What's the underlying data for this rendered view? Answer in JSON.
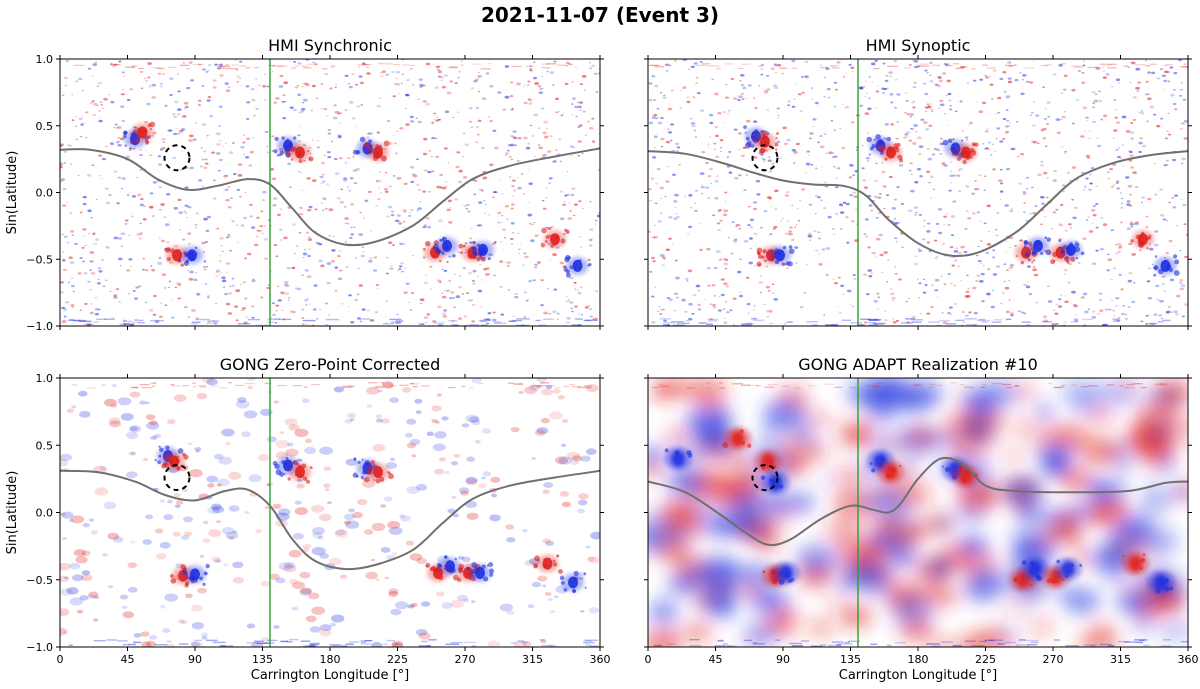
{
  "figure_title": "2021-11-07 (Event 3)",
  "colors": {
    "positive": "#e0201c",
    "negative": "#1c2fe0",
    "neutral_line": "#707070",
    "marker_line": "#2ca02c",
    "circle": "#000000"
  },
  "chart_data": [
    {
      "id": "hmi-synchronic",
      "type": "heatmap",
      "title": "HMI Synchronic",
      "xlabel": "",
      "ylabel": "Sin(Latitude)",
      "xlim": [
        0,
        360
      ],
      "ylim": [
        -1,
        1
      ],
      "xticks": [
        0,
        45,
        90,
        135,
        180,
        225,
        270,
        315,
        360
      ],
      "yticks": [
        -1.0,
        -0.5,
        0.0,
        0.5,
        1.0
      ],
      "ytick_labels": [
        "−1.0",
        "−0.5",
        "0.0",
        "0.5",
        "1.0"
      ],
      "show_xtick_labels": false,
      "show_ytick_labels": true,
      "vertical_line_lon": 140,
      "circle": {
        "lon": 78,
        "lat": 0.26
      },
      "neutral_line": [
        [
          0,
          0.32
        ],
        [
          20,
          0.32
        ],
        [
          45,
          0.25
        ],
        [
          65,
          0.1
        ],
        [
          85,
          0.02
        ],
        [
          105,
          0.05
        ],
        [
          125,
          0.1
        ],
        [
          140,
          0.06
        ],
        [
          155,
          -0.12
        ],
        [
          170,
          -0.3
        ],
        [
          190,
          -0.39
        ],
        [
          210,
          -0.37
        ],
        [
          235,
          -0.25
        ],
        [
          255,
          -0.07
        ],
        [
          275,
          0.1
        ],
        [
          300,
          0.2
        ],
        [
          330,
          0.27
        ],
        [
          360,
          0.33
        ]
      ],
      "flux_regions": [
        {
          "lon": 78,
          "lat": -0.47,
          "pol": "pos"
        },
        {
          "lon": 88,
          "lat": -0.47,
          "pol": "neg"
        },
        {
          "lon": 152,
          "lat": 0.35,
          "pol": "neg"
        },
        {
          "lon": 160,
          "lat": 0.3,
          "pol": "pos"
        },
        {
          "lon": 205,
          "lat": 0.33,
          "pol": "neg"
        },
        {
          "lon": 212,
          "lat": 0.3,
          "pol": "pos"
        },
        {
          "lon": 250,
          "lat": -0.45,
          "pol": "pos"
        },
        {
          "lon": 258,
          "lat": -0.4,
          "pol": "neg"
        },
        {
          "lon": 275,
          "lat": -0.45,
          "pol": "pos"
        },
        {
          "lon": 282,
          "lat": -0.43,
          "pol": "neg"
        },
        {
          "lon": 330,
          "lat": -0.35,
          "pol": "pos"
        },
        {
          "lon": 345,
          "lat": -0.55,
          "pol": "neg"
        },
        {
          "lon": 50,
          "lat": 0.4,
          "pol": "neg"
        },
        {
          "lon": 55,
          "lat": 0.45,
          "pol": "pos"
        }
      ]
    },
    {
      "id": "hmi-synoptic",
      "type": "heatmap",
      "title": "HMI Synoptic",
      "xlabel": "",
      "ylabel": "",
      "xlim": [
        0,
        360
      ],
      "ylim": [
        -1,
        1
      ],
      "xticks": [
        0,
        45,
        90,
        135,
        180,
        225,
        270,
        315,
        360
      ],
      "yticks": [
        -1.0,
        -0.5,
        0.0,
        0.5,
        1.0
      ],
      "ytick_labels": [
        "−1.0",
        "−0.5",
        "0.0",
        "0.5",
        "1.0"
      ],
      "show_xtick_labels": false,
      "show_ytick_labels": false,
      "vertical_line_lon": 140,
      "circle": {
        "lon": 78,
        "lat": 0.26
      },
      "neutral_line": [
        [
          0,
          0.31
        ],
        [
          25,
          0.29
        ],
        [
          50,
          0.22
        ],
        [
          70,
          0.15
        ],
        [
          90,
          0.09
        ],
        [
          110,
          0.06
        ],
        [
          130,
          0.05
        ],
        [
          145,
          -0.02
        ],
        [
          160,
          -0.2
        ],
        [
          180,
          -0.38
        ],
        [
          200,
          -0.47
        ],
        [
          220,
          -0.45
        ],
        [
          245,
          -0.3
        ],
        [
          265,
          -0.1
        ],
        [
          285,
          0.1
        ],
        [
          310,
          0.22
        ],
        [
          335,
          0.28
        ],
        [
          360,
          0.31
        ]
      ],
      "flux_regions": [
        {
          "lon": 72,
          "lat": 0.42,
          "pol": "neg"
        },
        {
          "lon": 78,
          "lat": 0.38,
          "pol": "pos"
        },
        {
          "lon": 82,
          "lat": -0.47,
          "pol": "pos"
        },
        {
          "lon": 88,
          "lat": -0.47,
          "pol": "neg"
        },
        {
          "lon": 155,
          "lat": 0.35,
          "pol": "neg"
        },
        {
          "lon": 162,
          "lat": 0.3,
          "pol": "pos"
        },
        {
          "lon": 205,
          "lat": 0.33,
          "pol": "neg"
        },
        {
          "lon": 212,
          "lat": 0.3,
          "pol": "pos"
        },
        {
          "lon": 252,
          "lat": -0.45,
          "pol": "pos"
        },
        {
          "lon": 260,
          "lat": -0.4,
          "pol": "neg"
        },
        {
          "lon": 275,
          "lat": -0.45,
          "pol": "pos"
        },
        {
          "lon": 282,
          "lat": -0.43,
          "pol": "neg"
        },
        {
          "lon": 330,
          "lat": -0.35,
          "pol": "pos"
        },
        {
          "lon": 345,
          "lat": -0.55,
          "pol": "neg"
        }
      ]
    },
    {
      "id": "gong-zero-point",
      "type": "heatmap",
      "title": "GONG Zero-Point Corrected",
      "xlabel": "Carrington Longitude [°]",
      "ylabel": "Sin(Latitude)",
      "xlim": [
        0,
        360
      ],
      "ylim": [
        -1,
        1
      ],
      "xticks": [
        0,
        45,
        90,
        135,
        180,
        225,
        270,
        315,
        360
      ],
      "yticks": [
        -1.0,
        -0.5,
        0.0,
        0.5,
        1.0
      ],
      "ytick_labels": [
        "−1.0",
        "−0.5",
        "0.0",
        "0.5",
        "1.0"
      ],
      "show_xtick_labels": true,
      "show_ytick_labels": true,
      "vertical_line_lon": 140,
      "circle": {
        "lon": 78,
        "lat": 0.26
      },
      "neutral_line": [
        [
          0,
          0.31
        ],
        [
          25,
          0.3
        ],
        [
          50,
          0.23
        ],
        [
          70,
          0.13
        ],
        [
          90,
          0.09
        ],
        [
          110,
          0.16
        ],
        [
          125,
          0.17
        ],
        [
          140,
          0.05
        ],
        [
          155,
          -0.2
        ],
        [
          170,
          -0.36
        ],
        [
          190,
          -0.42
        ],
        [
          210,
          -0.39
        ],
        [
          235,
          -0.28
        ],
        [
          255,
          -0.08
        ],
        [
          275,
          0.1
        ],
        [
          300,
          0.2
        ],
        [
          330,
          0.26
        ],
        [
          360,
          0.31
        ]
      ],
      "flux_regions": [
        {
          "lon": 72,
          "lat": 0.42,
          "pol": "neg"
        },
        {
          "lon": 76,
          "lat": 0.38,
          "pol": "pos"
        },
        {
          "lon": 82,
          "lat": -0.47,
          "pol": "pos"
        },
        {
          "lon": 90,
          "lat": -0.46,
          "pol": "neg"
        },
        {
          "lon": 152,
          "lat": 0.35,
          "pol": "neg"
        },
        {
          "lon": 160,
          "lat": 0.3,
          "pol": "pos"
        },
        {
          "lon": 205,
          "lat": 0.33,
          "pol": "neg"
        },
        {
          "lon": 212,
          "lat": 0.3,
          "pol": "pos"
        },
        {
          "lon": 252,
          "lat": -0.45,
          "pol": "pos"
        },
        {
          "lon": 260,
          "lat": -0.4,
          "pol": "neg"
        },
        {
          "lon": 272,
          "lat": -0.45,
          "pol": "pos"
        },
        {
          "lon": 280,
          "lat": -0.45,
          "pol": "neg"
        },
        {
          "lon": 325,
          "lat": -0.38,
          "pol": "pos"
        },
        {
          "lon": 342,
          "lat": -0.52,
          "pol": "neg"
        }
      ]
    },
    {
      "id": "gong-adapt",
      "type": "heatmap",
      "title": "GONG ADAPT Realization #10",
      "xlabel": "Carrington Longitude [°]",
      "ylabel": "",
      "xlim": [
        0,
        360
      ],
      "ylim": [
        -1,
        1
      ],
      "xticks": [
        0,
        45,
        90,
        135,
        180,
        225,
        270,
        315,
        360
      ],
      "yticks": [
        -1.0,
        -0.5,
        0.0,
        0.5,
        1.0
      ],
      "ytick_labels": [
        "−1.0",
        "−0.5",
        "0.0",
        "0.5",
        "1.0"
      ],
      "show_xtick_labels": true,
      "show_ytick_labels": false,
      "vertical_line_lon": 140,
      "circle": {
        "lon": 78,
        "lat": 0.26
      },
      "neutral_line": [
        [
          0,
          0.23
        ],
        [
          25,
          0.15
        ],
        [
          50,
          -0.03
        ],
        [
          65,
          -0.15
        ],
        [
          80,
          -0.24
        ],
        [
          95,
          -0.2
        ],
        [
          115,
          -0.05
        ],
        [
          135,
          0.05
        ],
        [
          150,
          0.02
        ],
        [
          160,
          0.0
        ],
        [
          168,
          0.06
        ],
        [
          180,
          0.25
        ],
        [
          195,
          0.4
        ],
        [
          210,
          0.36
        ],
        [
          225,
          0.2
        ],
        [
          245,
          0.16
        ],
        [
          280,
          0.15
        ],
        [
          320,
          0.16
        ],
        [
          345,
          0.22
        ],
        [
          360,
          0.23
        ]
      ],
      "flux_regions": [
        {
          "lon": 80,
          "lat": 0.38,
          "pol": "pos"
        },
        {
          "lon": 85,
          "lat": 0.22,
          "pol": "neg"
        },
        {
          "lon": 85,
          "lat": -0.47,
          "pol": "pos"
        },
        {
          "lon": 92,
          "lat": -0.45,
          "pol": "neg"
        },
        {
          "lon": 155,
          "lat": 0.38,
          "pol": "neg"
        },
        {
          "lon": 162,
          "lat": 0.3,
          "pol": "pos"
        },
        {
          "lon": 205,
          "lat": 0.32,
          "pol": "neg"
        },
        {
          "lon": 212,
          "lat": 0.27,
          "pol": "pos"
        },
        {
          "lon": 250,
          "lat": -0.5,
          "pol": "pos"
        },
        {
          "lon": 258,
          "lat": -0.42,
          "pol": "neg"
        },
        {
          "lon": 272,
          "lat": -0.48,
          "pol": "pos"
        },
        {
          "lon": 280,
          "lat": -0.42,
          "pol": "neg"
        },
        {
          "lon": 325,
          "lat": -0.38,
          "pol": "pos"
        },
        {
          "lon": 342,
          "lat": -0.52,
          "pol": "neg"
        },
        {
          "lon": 20,
          "lat": 0.4,
          "pol": "neg"
        },
        {
          "lon": 60,
          "lat": 0.55,
          "pol": "pos"
        }
      ]
    }
  ]
}
